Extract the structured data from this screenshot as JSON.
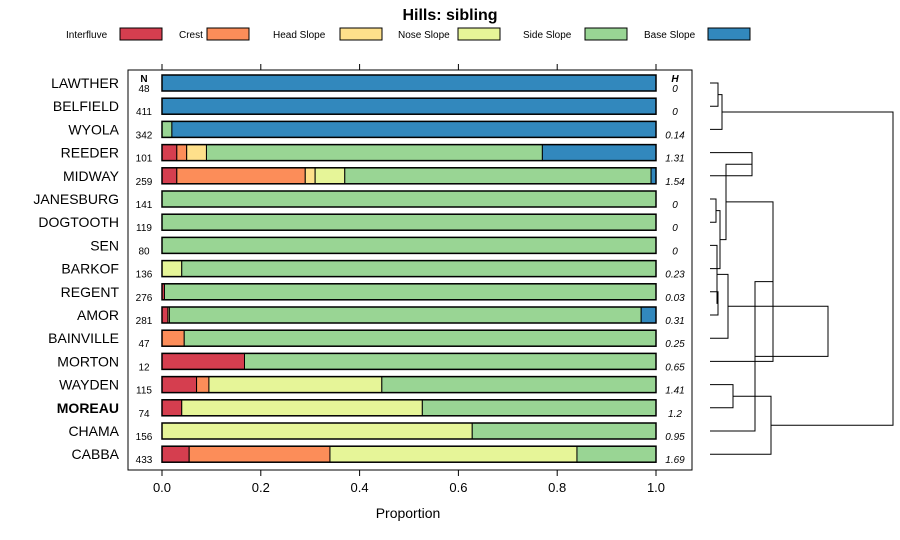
{
  "chart_data": {
    "type": "bar",
    "orientation": "horizontal",
    "stacked": true,
    "title": "Hills: sibling",
    "xlabel": "Proportion",
    "xlim": [
      0,
      1
    ],
    "xticks": [
      0,
      0.2,
      0.4,
      0.6,
      0.8,
      1
    ],
    "xtick_labels": [
      "0.0",
      "0.2",
      "0.4",
      "0.6",
      "0.8",
      "1.0"
    ],
    "n_header": "N",
    "h_header": "H",
    "legend": [
      {
        "label": "Interfluve",
        "color": "#d53e4f"
      },
      {
        "label": "Crest",
        "color": "#fc8d59"
      },
      {
        "label": "Head Slope",
        "color": "#fee08b"
      },
      {
        "label": "Nose Slope",
        "color": "#e6f598"
      },
      {
        "label": "Side Slope",
        "color": "#99d594"
      },
      {
        "label": "Base Slope",
        "color": "#3288bd"
      }
    ],
    "highlight": "MOREAU",
    "categories": [
      "LAWTHER",
      "BELFIELD",
      "WYOLA",
      "REEDER",
      "MIDWAY",
      "JANESBURG",
      "DOGTOOTH",
      "SEN",
      "BARKOF",
      "REGENT",
      "AMOR",
      "BAINVILLE",
      "MORTON",
      "WAYDEN",
      "MOREAU",
      "CHAMA",
      "CABBA"
    ],
    "n": [
      "48",
      "411",
      "342",
      "101",
      "259",
      "141",
      "119",
      "80",
      "136",
      "276",
      "281",
      "47",
      "12",
      "115",
      "74",
      "156",
      "433"
    ],
    "h": [
      "0",
      "0",
      "0.14",
      "1.31",
      "1.54",
      "0",
      "0",
      "0",
      "0.23",
      "0.03",
      "0.31",
      "0.25",
      "0.65",
      "1.41",
      "1.2",
      "0.95",
      "1.69"
    ],
    "proportions": [
      [
        0,
        0,
        0,
        0,
        0,
        1
      ],
      [
        0,
        0,
        0,
        0,
        0,
        1
      ],
      [
        0,
        0,
        0,
        0,
        0.02,
        0.98
      ],
      [
        0.03,
        0.02,
        0.04,
        0,
        0.68,
        0.23
      ],
      [
        0.03,
        0.26,
        0.02,
        0.06,
        0.62,
        0.01
      ],
      [
        0,
        0,
        0,
        0,
        1,
        0
      ],
      [
        0,
        0,
        0,
        0,
        1,
        0
      ],
      [
        0,
        0,
        0,
        0,
        1,
        0
      ],
      [
        0,
        0,
        0,
        0.04,
        0.96,
        0
      ],
      [
        0.005,
        0,
        0,
        0,
        0.995,
        0
      ],
      [
        0.012,
        0,
        0,
        0.003,
        0.955,
        0.03
      ],
      [
        0,
        0.045,
        0,
        0,
        0.955,
        0
      ],
      [
        0.167,
        0,
        0,
        0,
        0.833,
        0
      ],
      [
        0.07,
        0.025,
        0,
        0.35,
        0.555,
        0
      ],
      [
        0.04,
        0,
        0,
        0.487,
        0.473,
        0
      ],
      [
        0,
        0,
        0,
        0.628,
        0.372,
        0
      ],
      [
        0.055,
        0.285,
        0,
        0.5,
        0.16,
        0
      ]
    ],
    "dendrogram": "hierarchical clustering of the 17 soil series (row order)"
  }
}
